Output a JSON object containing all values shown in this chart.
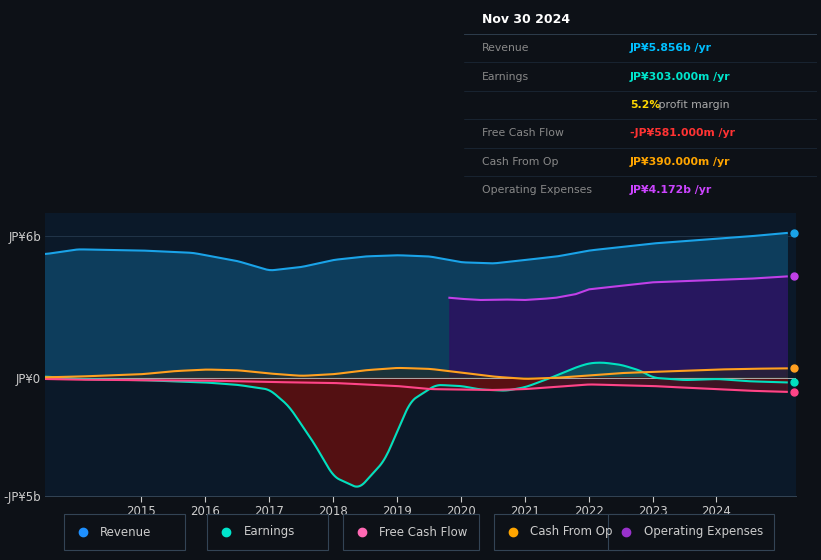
{
  "background_color": "#0d1117",
  "chart_bg": "#0b1929",
  "ylim": [
    -5000000000.0,
    7000000000.0
  ],
  "ytick_labels": [
    "-JP¥5b",
    "JP¥0",
    "JP¥6b"
  ],
  "ytick_vals": [
    -5000000000.0,
    0,
    6000000000.0
  ],
  "legend": [
    {
      "label": "Revenue",
      "color": "#1e90ff"
    },
    {
      "label": "Earnings",
      "color": "#00e5cc"
    },
    {
      "label": "Free Cash Flow",
      "color": "#ff69b4"
    },
    {
      "label": "Cash From Op",
      "color": "#ffa500"
    },
    {
      "label": "Operating Expenses",
      "color": "#9932cc"
    }
  ],
  "info_title": "Nov 30 2024",
  "info_rows": [
    {
      "label": "Revenue",
      "value": "JP¥5.856b /yr",
      "color": "#00bfff"
    },
    {
      "label": "Earnings",
      "value": "JP¥303.000m /yr",
      "color": "#00e5cc"
    },
    {
      "label": "",
      "value": "5.2% profit margin",
      "color_pct": "#ffd700",
      "color_rest": "#aaaaaa",
      "is_margin": true
    },
    {
      "label": "Free Cash Flow",
      "value": "-JP¥581.000m /yr",
      "color": "#ff3333"
    },
    {
      "label": "Cash From Op",
      "value": "JP¥390.000m /yr",
      "color": "#ffa500"
    },
    {
      "label": "Operating Expenses",
      "value": "JP¥4.172b /yr",
      "color": "#cc44ff"
    }
  ]
}
